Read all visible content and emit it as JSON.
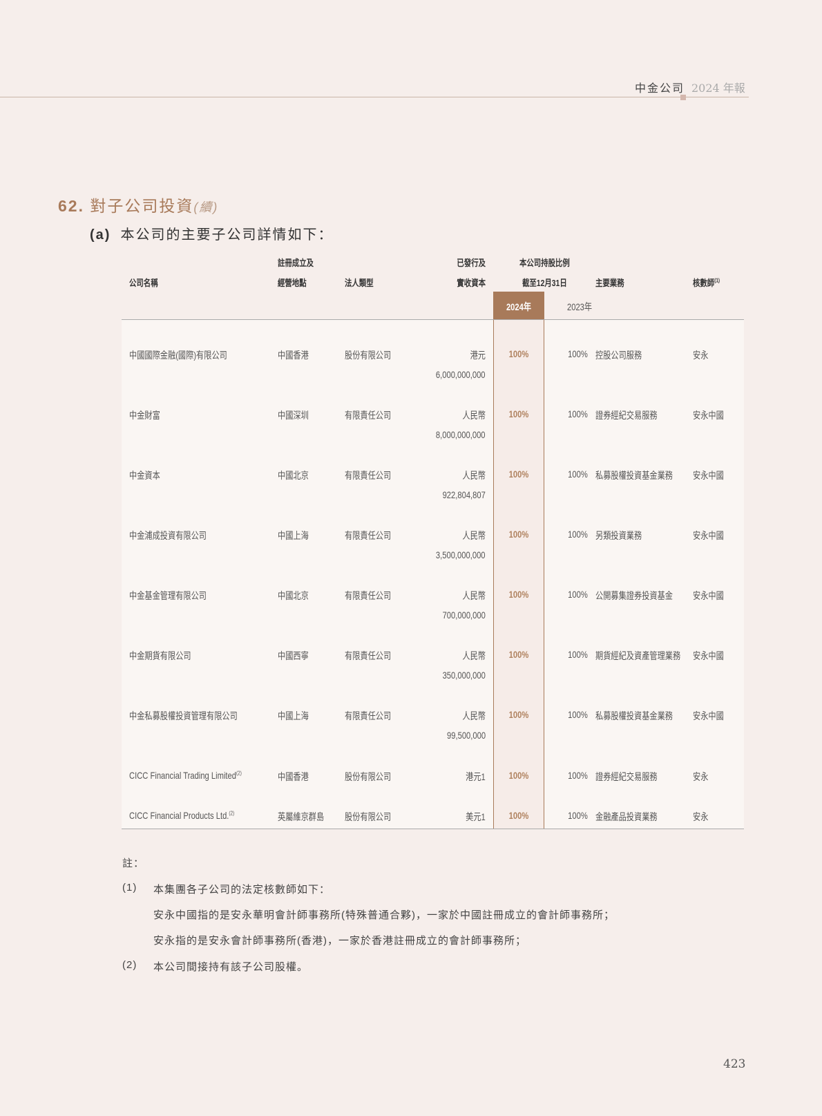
{
  "header": {
    "company": "中金公司",
    "report": "2024 年報"
  },
  "section": {
    "number": "62.",
    "title": "對子公司投資",
    "cont": "(續)"
  },
  "subsection": {
    "label": "(a)",
    "title": "本公司的主要子公司詳情如下："
  },
  "table": {
    "headers": {
      "name": "公司名稱",
      "place_1": "註冊成立及",
      "place_2": "經營地點",
      "type": "法人類型",
      "capital_1": "已發行及",
      "capital_2": "實收資本",
      "holding_1": "本公司持股比例",
      "holding_2": "截至12月31日",
      "business": "主要業務",
      "auditor": "核數師",
      "auditor_note": "(1)",
      "y2024": "2024年",
      "y2023": "2023年"
    },
    "rows": [
      {
        "name": "中國國際金融(國際)有限公司",
        "note": "",
        "place": "中國香港",
        "type": "股份有限公司",
        "cap1": "港元",
        "cap2": "6,000,000,000",
        "p2024": "100%",
        "p2023": "100%",
        "business": "控股公司服務",
        "auditor": "安永"
      },
      {
        "name": "中金財富",
        "note": "",
        "place": "中國深圳",
        "type": "有限責任公司",
        "cap1": "人民幣",
        "cap2": "8,000,000,000",
        "p2024": "100%",
        "p2023": "100%",
        "business": "證券經紀交易服務",
        "auditor": "安永中國"
      },
      {
        "name": "中金資本",
        "note": "",
        "place": "中國北京",
        "type": "有限責任公司",
        "cap1": "人民幣",
        "cap2": "922,804,807",
        "p2024": "100%",
        "p2023": "100%",
        "business": "私募股權投資基金業務",
        "auditor": "安永中國"
      },
      {
        "name": "中金浦成投資有限公司",
        "note": "",
        "place": "中國上海",
        "type": "有限責任公司",
        "cap1": "人民幣",
        "cap2": "3,500,000,000",
        "p2024": "100%",
        "p2023": "100%",
        "business": "另類投資業務",
        "auditor": "安永中國"
      },
      {
        "name": "中金基金管理有限公司",
        "note": "",
        "place": "中國北京",
        "type": "有限責任公司",
        "cap1": "人民幣",
        "cap2": "700,000,000",
        "p2024": "100%",
        "p2023": "100%",
        "business": "公開募集證券投資基金",
        "auditor": "安永中國"
      },
      {
        "name": "中金期貨有限公司",
        "note": "",
        "place": "中國西寧",
        "type": "有限責任公司",
        "cap1": "人民幣",
        "cap2": "350,000,000",
        "p2024": "100%",
        "p2023": "100%",
        "business": "期貨經紀及資產管理業務",
        "auditor": "安永中國"
      },
      {
        "name": "中金私募股權投資管理有限公司",
        "note": "",
        "place": "中國上海",
        "type": "有限責任公司",
        "cap1": "人民幣",
        "cap2": "99,500,000",
        "p2024": "100%",
        "p2023": "100%",
        "business": "私募股權投資基金業務",
        "auditor": "安永中國"
      },
      {
        "name": "CICC Financial Trading Limited",
        "note": "(2)",
        "place": "中國香港",
        "type": "股份有限公司",
        "cap1": "港元1",
        "cap2": "",
        "p2024": "100%",
        "p2023": "100%",
        "business": "證券經紀交易服務",
        "auditor": "安永"
      },
      {
        "name": "CICC Financial Products Ltd.",
        "note": "(2)",
        "place": "英屬維京群島",
        "type": "股份有限公司",
        "cap1": "美元1",
        "cap2": "",
        "p2024": "100%",
        "p2023": "100%",
        "business": "金融產品投資業務",
        "auditor": "安永"
      }
    ]
  },
  "notes": {
    "heading": "註：",
    "n1_label": "(1)",
    "n1_text": "本集團各子公司的法定核數師如下：",
    "n1_a": "安永中國指的是安永華明會計師事務所(特殊普通合夥)，一家於中國註冊成立的會計師事務所；",
    "n1_b": "安永指的是安永會計師事務所(香港)，一家於香港註冊成立的會計師事務所；",
    "n2_label": "(2)",
    "n2_text": "本公司間接持有該子公司股權。"
  },
  "page_number": "423",
  "colors": {
    "accent": "#a87a5a",
    "background": "#f6eeeb",
    "table_background": "#faf6f3"
  }
}
